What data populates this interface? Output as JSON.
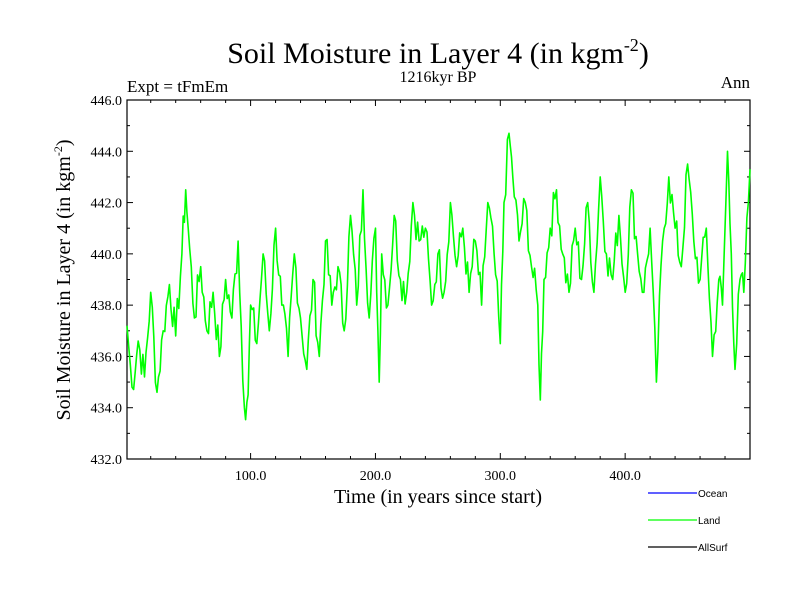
{
  "chart_data": {
    "type": "line",
    "title_main": "Soil Moisture in Layer 4 (in kgm",
    "title_sup": "-2",
    "title_end": ")",
    "subtitle_left": "Expt = tFmEm",
    "subtitle_center": "1216kyr BP",
    "subtitle_right": "Ann",
    "xlabel": "Time (in years since start)",
    "ylabel_main": "Soil Moisture in Layer 4 (in kgm",
    "ylabel_sup": "-2",
    "ylabel_end": ")",
    "xlim": [
      1,
      500
    ],
    "ylim": [
      432.0,
      446.0
    ],
    "x_ticks": [
      100,
      200,
      300,
      400
    ],
    "x_tick_labels": [
      "100.0",
      "200.0",
      "300.0",
      "400.0"
    ],
    "y_ticks": [
      432,
      434,
      436,
      438,
      440,
      442,
      444,
      446
    ],
    "y_tick_labels": [
      "432.0",
      "434.0",
      "436.0",
      "438.0",
      "440.0",
      "442.0",
      "444.0",
      "446.0"
    ],
    "series": [
      {
        "name": "Ocean",
        "color": "#0000ff",
        "values": []
      },
      {
        "name": "Land",
        "color": "#00ff00",
        "anchors": [
          [
            1,
            437.2
          ],
          [
            5,
            434.8
          ],
          [
            10,
            436.6
          ],
          [
            15,
            435.2
          ],
          [
            20,
            438.5
          ],
          [
            25,
            434.6
          ],
          [
            30,
            437.0
          ],
          [
            35,
            438.8
          ],
          [
            40,
            436.8
          ],
          [
            45,
            440.0
          ],
          [
            48,
            442.5
          ],
          [
            50,
            441.0
          ],
          [
            55,
            437.5
          ],
          [
            60,
            439.5
          ],
          [
            65,
            437.0
          ],
          [
            70,
            438.5
          ],
          [
            75,
            436.0
          ],
          [
            80,
            439.0
          ],
          [
            85,
            437.5
          ],
          [
            90,
            440.5
          ],
          [
            95,
            434.0
          ],
          [
            98,
            434.5
          ],
          [
            100,
            438.0
          ],
          [
            105,
            436.5
          ],
          [
            110,
            440.0
          ],
          [
            115,
            437.0
          ],
          [
            120,
            441.0
          ],
          [
            125,
            438.0
          ],
          [
            130,
            436.0
          ],
          [
            135,
            440.0
          ],
          [
            140,
            437.5
          ],
          [
            145,
            435.5
          ],
          [
            150,
            439.0
          ],
          [
            155,
            436.0
          ],
          [
            160,
            440.5
          ],
          [
            165,
            438.0
          ],
          [
            170,
            439.5
          ],
          [
            175,
            437.0
          ],
          [
            180,
            441.5
          ],
          [
            185,
            438.0
          ],
          [
            190,
            442.5
          ],
          [
            195,
            437.5
          ],
          [
            200,
            441.0
          ],
          [
            203,
            435.0
          ],
          [
            205,
            440.0
          ],
          [
            210,
            438.0
          ],
          [
            215,
            441.5
          ],
          [
            220,
            439.0
          ],
          [
            225,
            438.5
          ],
          [
            230,
            442.0
          ],
          [
            235,
            440.5
          ],
          [
            240,
            441.0
          ],
          [
            245,
            438.0
          ],
          [
            250,
            440.0
          ],
          [
            255,
            438.5
          ],
          [
            260,
            442.0
          ],
          [
            265,
            439.5
          ],
          [
            270,
            441.0
          ],
          [
            275,
            438.5
          ],
          [
            280,
            440.5
          ],
          [
            285,
            438.0
          ],
          [
            290,
            442.0
          ],
          [
            295,
            440.0
          ],
          [
            300,
            436.5
          ],
          [
            303,
            442.0
          ],
          [
            307,
            444.7
          ],
          [
            310,
            443.0
          ],
          [
            315,
            440.5
          ],
          [
            320,
            442.0
          ],
          [
            325,
            439.5
          ],
          [
            330,
            438.0
          ],
          [
            332,
            434.3
          ],
          [
            335,
            439.0
          ],
          [
            340,
            441.0
          ],
          [
            345,
            442.5
          ],
          [
            350,
            440.0
          ],
          [
            355,
            438.5
          ],
          [
            360,
            441.0
          ],
          [
            365,
            439.0
          ],
          [
            370,
            442.0
          ],
          [
            375,
            438.5
          ],
          [
            380,
            443.0
          ],
          [
            385,
            440.0
          ],
          [
            390,
            439.0
          ],
          [
            395,
            441.5
          ],
          [
            400,
            438.5
          ],
          [
            405,
            442.5
          ],
          [
            410,
            440.0
          ],
          [
            415,
            438.5
          ],
          [
            420,
            441.0
          ],
          [
            425,
            435.0
          ],
          [
            430,
            440.5
          ],
          [
            435,
            443.0
          ],
          [
            440,
            441.0
          ],
          [
            445,
            439.5
          ],
          [
            450,
            443.5
          ],
          [
            455,
            440.5
          ],
          [
            460,
            439.0
          ],
          [
            465,
            441.0
          ],
          [
            470,
            436.0
          ],
          [
            475,
            439.0
          ],
          [
            478,
            438.0
          ],
          [
            482,
            444.0
          ],
          [
            485,
            440.0
          ],
          [
            488,
            435.5
          ],
          [
            492,
            439.0
          ],
          [
            495,
            438.5
          ],
          [
            500,
            443.3
          ]
        ]
      },
      {
        "name": "AllSurf",
        "color": "#000000",
        "values": []
      }
    ],
    "legend_position": "bottom-right"
  }
}
